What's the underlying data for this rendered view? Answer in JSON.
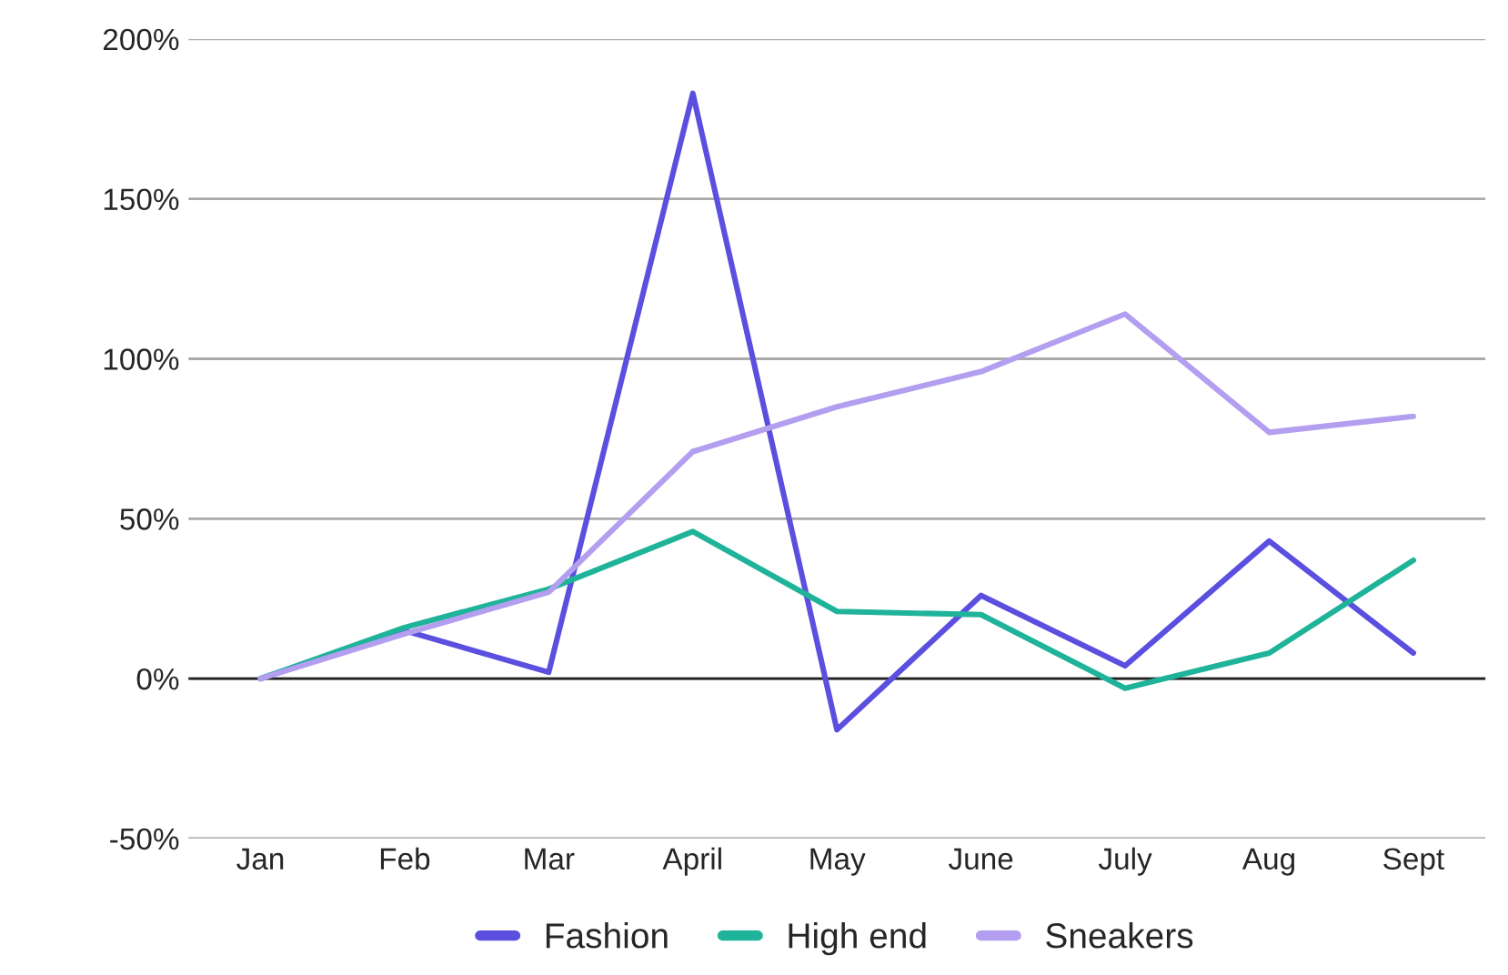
{
  "chart_data": {
    "type": "line",
    "categories": [
      "Jan",
      "Feb",
      "Mar",
      "April",
      "May",
      "June",
      "July",
      "Aug",
      "Sept"
    ],
    "series": [
      {
        "name": "Fashion",
        "color": "#5b4fe0",
        "values": [
          0,
          15,
          2,
          183,
          -16,
          26,
          4,
          43,
          8
        ]
      },
      {
        "name": "High end",
        "color": "#1fb39a",
        "values": [
          0,
          16,
          28,
          46,
          21,
          20,
          -3,
          8,
          37
        ]
      },
      {
        "name": "Sneakers",
        "color": "#b39ef0",
        "values": [
          0,
          14,
          27,
          71,
          85,
          96,
          114,
          77,
          82
        ]
      }
    ],
    "ylim": [
      -50,
      200
    ],
    "yticks": [
      {
        "value": -50,
        "label": "-50%"
      },
      {
        "value": 0,
        "label": "0%"
      },
      {
        "value": 50,
        "label": "50%"
      },
      {
        "value": 100,
        "label": "100%"
      },
      {
        "value": 150,
        "label": "150%"
      },
      {
        "value": 200,
        "label": "200%"
      }
    ],
    "ref_lines": [
      {
        "axis": "y",
        "value": 0,
        "color": "#222222"
      }
    ],
    "grid": "y",
    "legend": "bottom",
    "marker": "none",
    "line_style": "solid"
  }
}
